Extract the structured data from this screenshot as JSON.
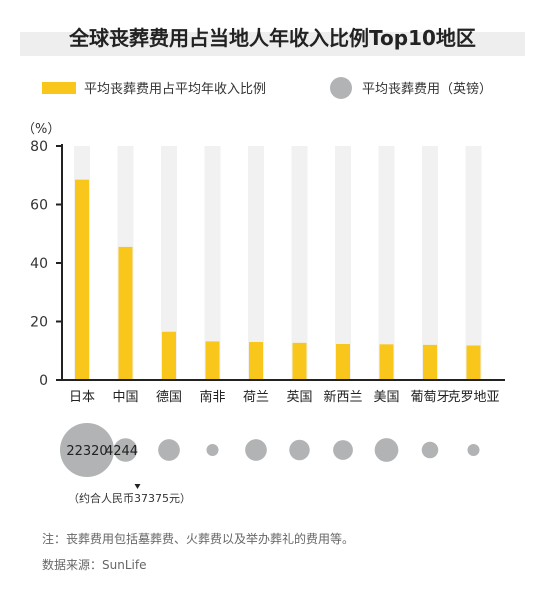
{
  "chart_data": {
    "type": "bar",
    "title": "全球丧葬费用占当地人年收入比例Top10地区",
    "y_unit": "（%）",
    "ylim": [
      0,
      80
    ],
    "yticks": [
      0,
      20,
      40,
      60,
      80
    ],
    "categories": [
      "日本",
      "中国",
      "德国",
      "南非",
      "荷兰",
      "英国",
      "新西兰",
      "美国",
      "葡萄牙",
      "克罗地亚"
    ],
    "series": [
      {
        "name": "平均丧葬费用占平均年收入比例",
        "values": [
          68.5,
          45.5,
          16.5,
          13.2,
          13.0,
          12.7,
          12.3,
          12.2,
          12.0,
          11.8
        ]
      },
      {
        "name": "平均丧葬费用（英镑）",
        "values": [
          22320,
          4244,
          3600,
          850,
          3600,
          3200,
          3000,
          4300,
          2100,
          1000
        ]
      }
    ],
    "bubble_labels": [
      "22320",
      "4244"
    ],
    "bubble_annotation": "（约合人民币37375元）",
    "legend_position": "top",
    "grid": false,
    "colors": {
      "bar": "#f9c71b",
      "track": "#f1f1f1",
      "bubble": "#b1b3b4",
      "axis": "#222222"
    }
  },
  "notes": {
    "footnote": "注：丧葬费用包括墓葬费、火葬费以及举办葬礼的费用等。",
    "source": "数据来源：SunLife"
  }
}
